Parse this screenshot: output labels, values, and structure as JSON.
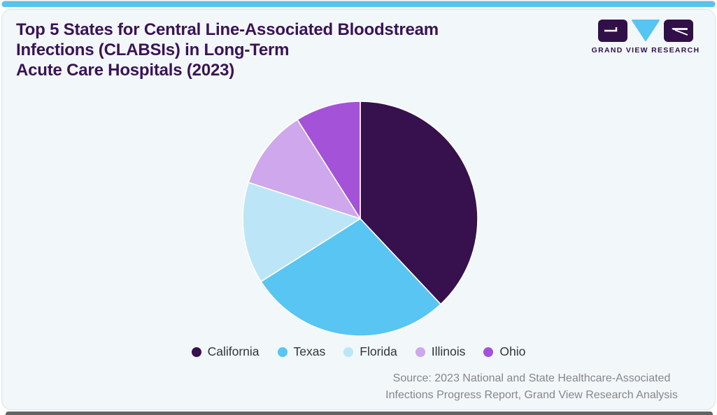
{
  "header": {
    "title_lines": [
      "Top 5 States for Central Line-Associated Bloodstream",
      "Infections (CLABSIs) in Long-Term",
      "Acute Care Hospitals (2023)"
    ],
    "title_color": "#3A1355",
    "logo": {
      "text": "GRAND VIEW RESEARCH",
      "dark_color": "#31104A",
      "cyan_color": "#56C5F2"
    }
  },
  "chart_data": {
    "type": "pie",
    "title": "Top 5 States for Central Line-Associated Bloodstream Infections (CLABSIs) in Long-Term Acute Care Hospitals (2023)",
    "categories": [
      "California",
      "Texas",
      "Florida",
      "Illinois",
      "Ohio"
    ],
    "values": [
      38,
      28,
      14,
      11,
      9
    ],
    "unit": "percent (estimated from slice angles; no labels shown)",
    "colors": [
      "#36114D",
      "#58C5F3",
      "#BCE6F8",
      "#CFA7ED",
      "#A452D8"
    ],
    "start_angle_deg": 0,
    "direction": "clockwise",
    "slice_border_color": "#FFFFFF",
    "legend_position": "bottom"
  },
  "source": {
    "lines": [
      "Source: 2023 National and State Healthcare-Associated",
      "Infections Progress Report, Grand View Research Analysis"
    ]
  },
  "page_colors": {
    "card_background": "#F2F7FA",
    "top_strip": "#56C3EF",
    "bottom_strip": "#636363"
  }
}
